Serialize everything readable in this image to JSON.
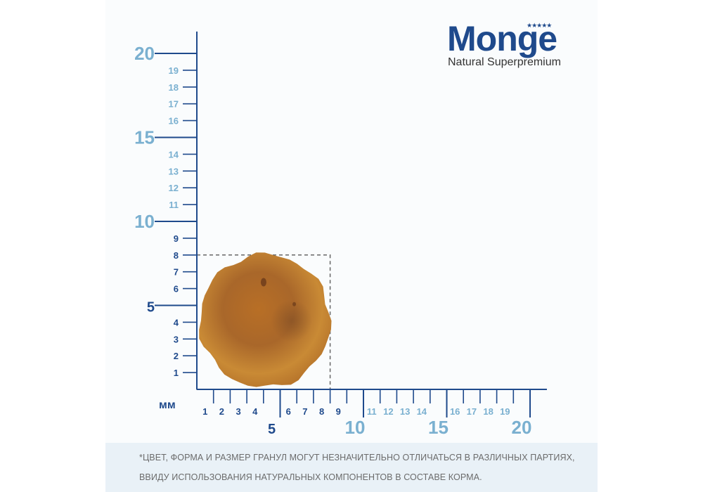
{
  "brand": {
    "name": "Monge",
    "tagline": "Natural Superpremium",
    "stars": "★★★★★",
    "color": "#1f4a8c"
  },
  "ruler": {
    "unit_label": "мм",
    "major_color": "#7ab0d0",
    "minor_color": "#1f4a8c",
    "axis_color": "#1f4a8c",
    "y_axis": {
      "major_labels": [
        "5",
        "10",
        "15",
        "20"
      ],
      "minor_labels": [
        "1",
        "2",
        "3",
        "4",
        "6",
        "7",
        "8",
        "9",
        "11",
        "12",
        "13",
        "14",
        "16",
        "17",
        "18",
        "19"
      ]
    },
    "x_axis": {
      "major_labels": [
        "5",
        "10",
        "15",
        "20"
      ],
      "minor_labels": [
        "1",
        "2",
        "3",
        "4",
        "6",
        "7",
        "8",
        "9",
        "11",
        "12",
        "13",
        "14",
        "16",
        "17",
        "18",
        "19"
      ]
    }
  },
  "kibble": {
    "width_mm": 8,
    "height_mm": 8,
    "shape": "round",
    "color": "#c27a2a"
  },
  "disclaimer": {
    "line1": "*ЦВЕТ, ФОРМА И РАЗМЕР ГРАНУЛ МОГУТ НЕЗНАЧИТЕЛЬНО ОТЛИЧАТЬСЯ В РАЗЛИЧНЫХ ПАРТИЯХ,",
    "line2": "ВВИДУ ИСПОЛЬЗОВАНИЯ НАТУРАЛЬНЫХ КОМПОНЕНТОВ В СОСТАВЕ КОРМА."
  }
}
